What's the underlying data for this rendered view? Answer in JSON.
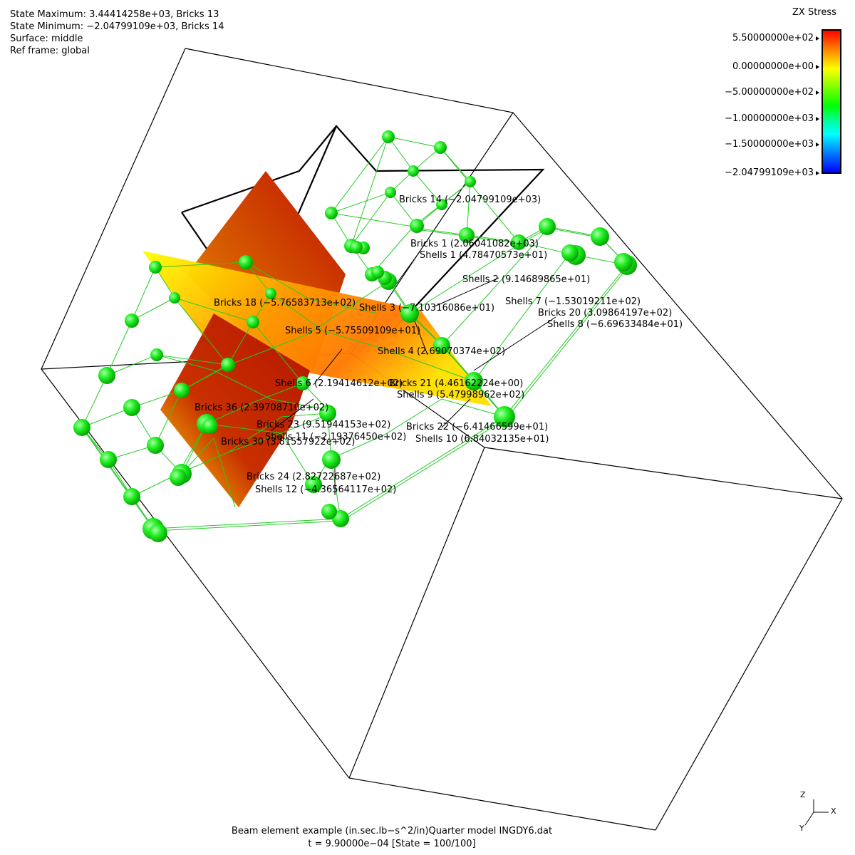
{
  "header": {
    "state_max": "State Maximum: 3.44414258e+03, Bricks 13",
    "state_min": "State Minimum: −2.04799109e+03, Bricks 14",
    "surface": "Surface: middle",
    "ref_frame": "Ref frame: global"
  },
  "legend": {
    "title": "ZX Stress",
    "ticks": [
      "5.50000000e+02",
      "0.00000000e+00",
      "−5.00000000e+02",
      "−1.00000000e+03",
      "−1.50000000e+03",
      "−2.04799109e+03"
    ]
  },
  "element_labels": [
    "Bricks 14 (−2.04799109e+03)",
    "Bricks 1 (2.06041082e+03)",
    "Shells 1 (4.78470573e+01)",
    "Shells 2 (9.14689865e+01)",
    "Shells 7 (−1.53019211e+02)",
    "Bricks 18 (−5.76583713e+02)",
    "Shells 3 (−7.10316086e+01)",
    "Bricks 20 (3.09864197e+02)",
    "Shells 8 (−6.69633484e+01)",
    "Shells 5 (−5.75509109e+01)",
    "Shells 4 (2.69070374e+02)",
    "Shells 6 (2.19414612e+02)",
    "Bricks 21 (4.46162224e+00)",
    "Shells 9 (5.47998962e+02)",
    "Bricks 36 (2.39708710e+02)",
    "Bricks 23 (9.51944153e+02)",
    "Bricks 22 (−6.41466599e+01)",
    "Shells 11 (−2.19376450e+02)",
    "Shells 10 (6.84032135e+01)",
    "Bricks 30 (3.81557922e+02)",
    "Bricks 24 (2.82722687e+02)",
    "Shells 12 (−4.36564117e+02)"
  ],
  "footer": {
    "line1": "Beam element example (in.sec.lb−s^2/in)Quarter model INGDY6.dat",
    "line2": "t = 9.90000e−04 [State = 100/100]"
  },
  "triad": {
    "z": "Z",
    "x": "X",
    "y": "Y"
  },
  "colors": {
    "node": "#00ee00",
    "mesh": "#22cc22",
    "hot": "#d21400",
    "warm": "#ff9000",
    "cool": "#ffff00"
  }
}
